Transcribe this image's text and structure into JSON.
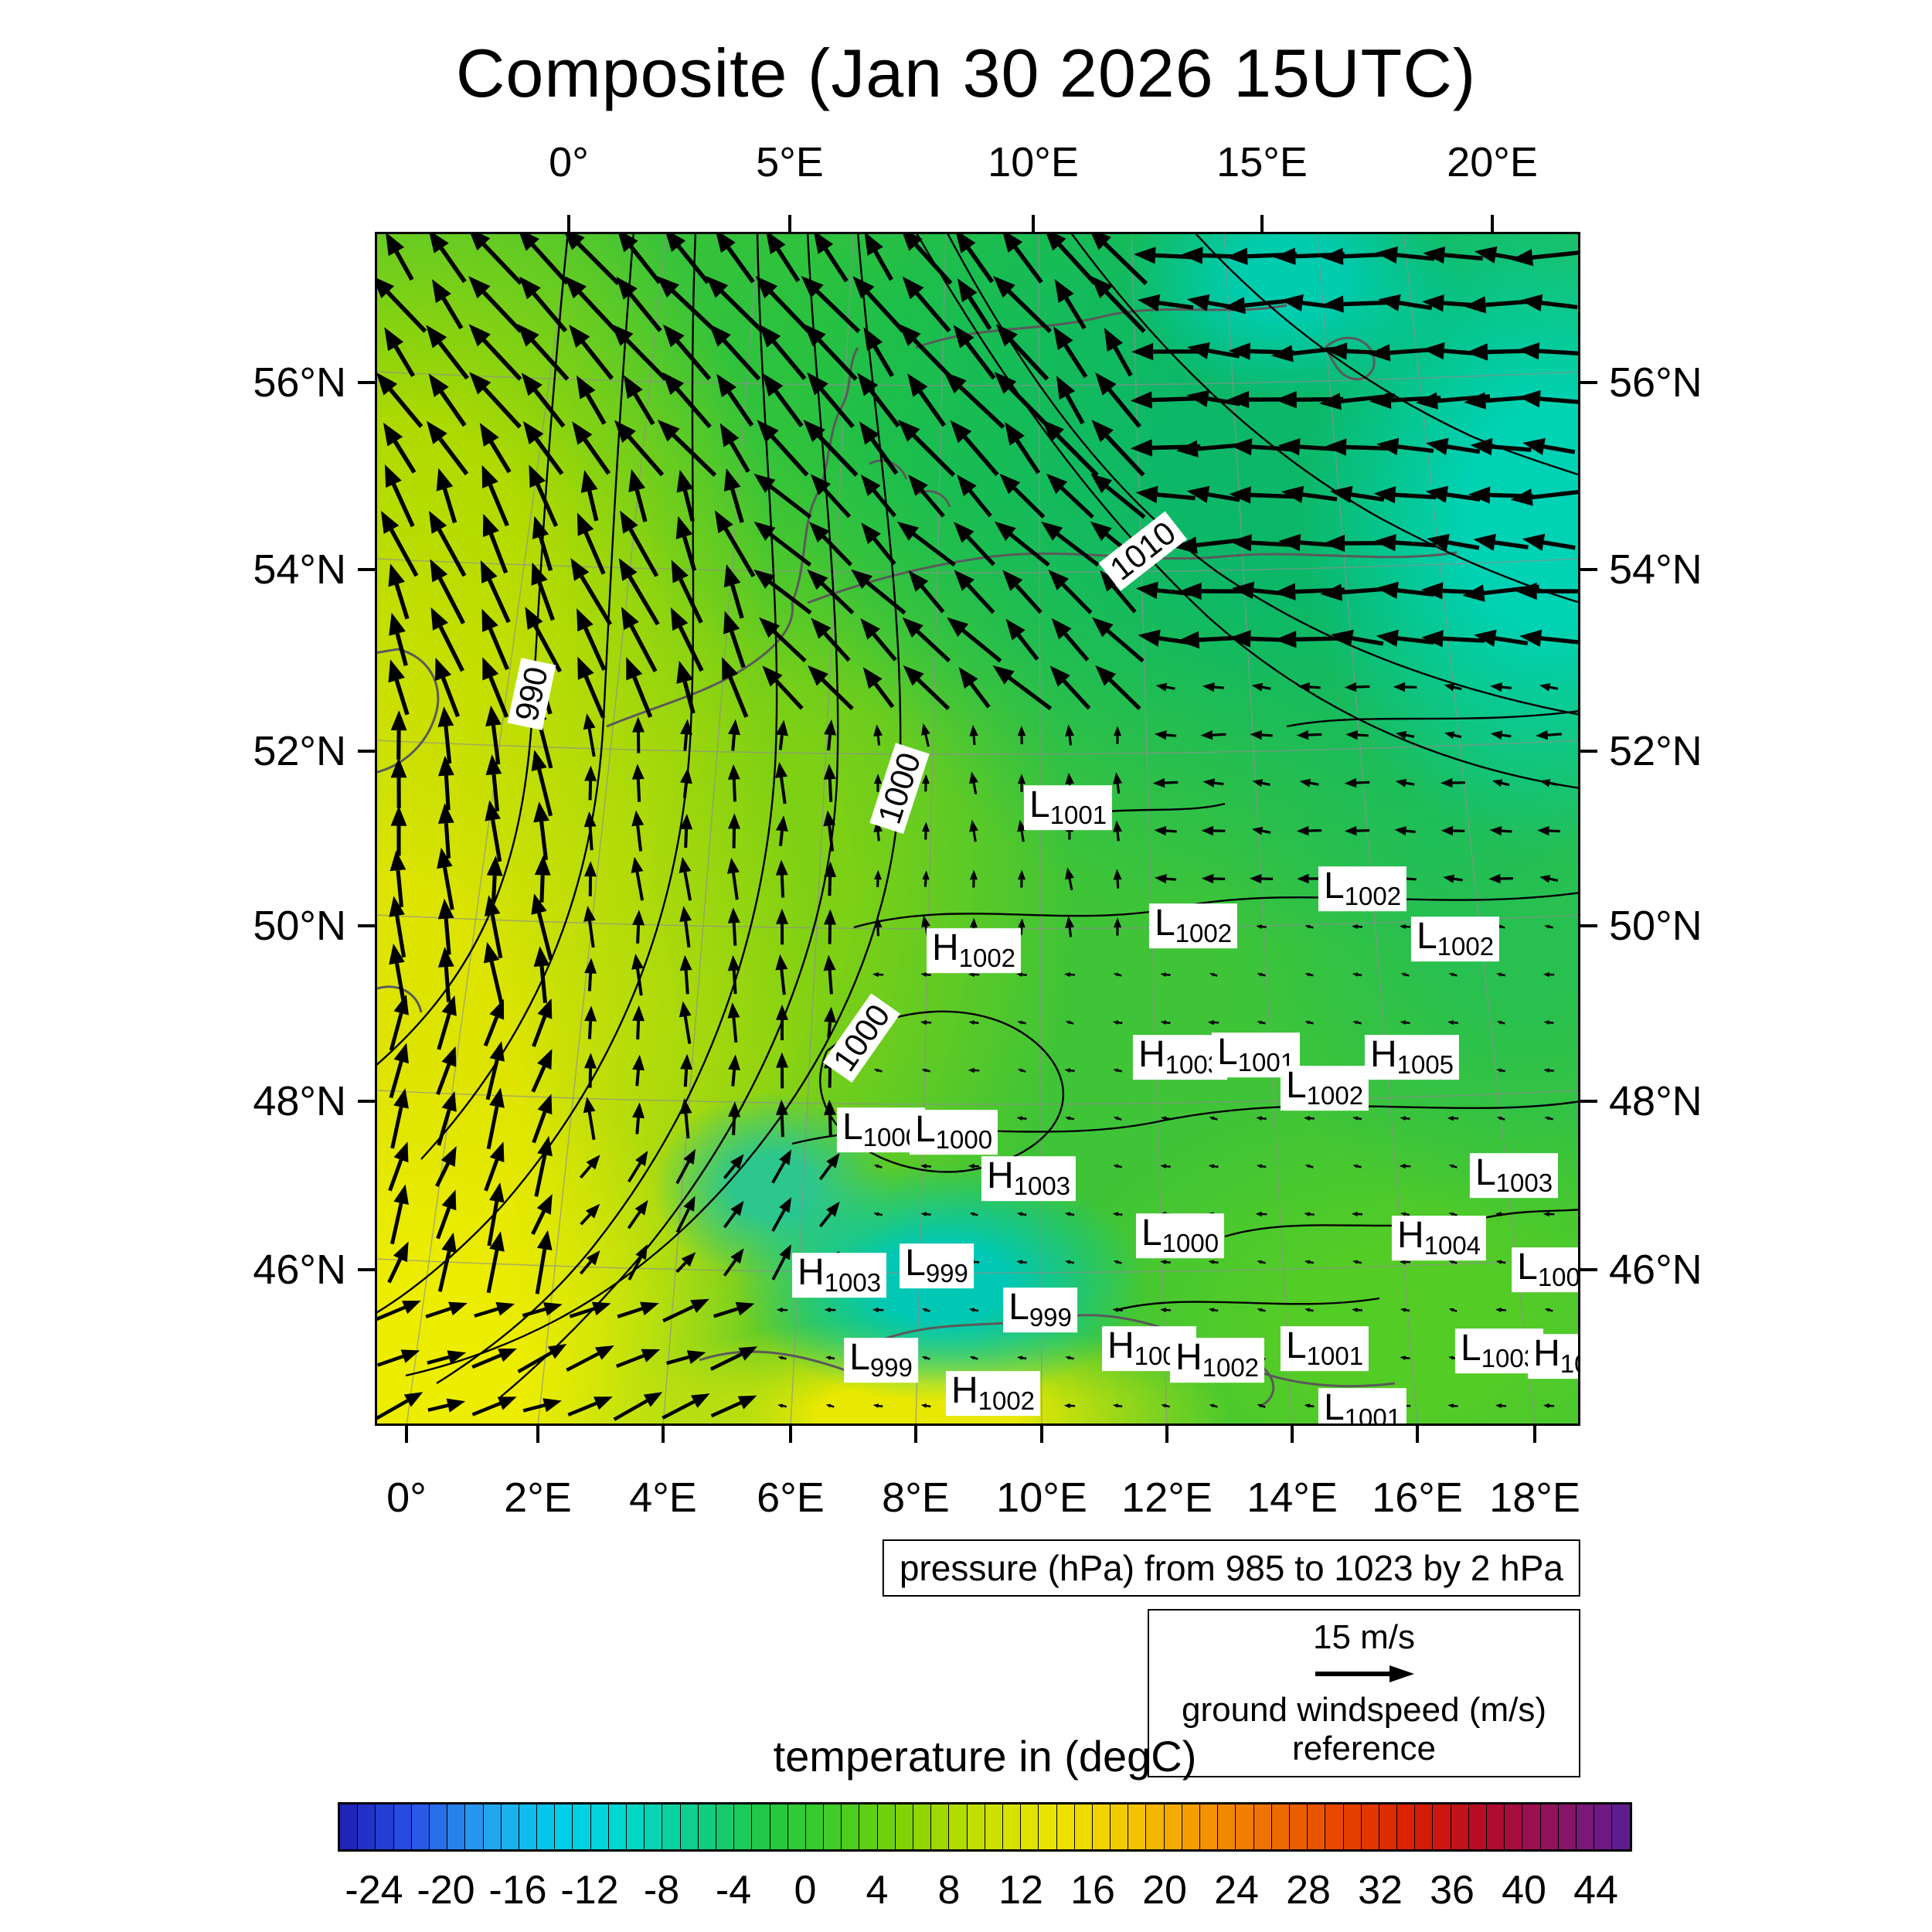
{
  "title": "Composite (Jan 30 2026 15UTC)",
  "chart_data": {
    "type": "heatmap",
    "title": "Composite (Jan 30 2026 15UTC)",
    "description": "Surface composite weather map over central Europe: temperature shading, sea-level pressure contours, surface wind vectors",
    "pressure_note": "pressure (hPa) from 985 to 1023 by 2 hPa",
    "wind_reference": {
      "value": "15 m/s",
      "label": "ground windspeed (m/s) reference"
    },
    "colorbar": {
      "title": "temperature in (degC)",
      "units": "degC",
      "min": -26,
      "max": 46,
      "tick_labels": [
        -24,
        -20,
        -16,
        -12,
        -8,
        -4,
        0,
        4,
        8,
        12,
        16,
        20,
        24,
        28,
        32,
        36,
        40,
        44
      ],
      "stops": [
        [
          -26,
          "#1e1eb4"
        ],
        [
          -22,
          "#2850e6"
        ],
        [
          -18,
          "#28a0f0"
        ],
        [
          -14,
          "#00ccee"
        ],
        [
          -10,
          "#00d8cc"
        ],
        [
          -6,
          "#10cc88"
        ],
        [
          -2,
          "#22c840"
        ],
        [
          2,
          "#44cc22"
        ],
        [
          6,
          "#88d400"
        ],
        [
          10,
          "#c8e000"
        ],
        [
          14,
          "#ece400"
        ],
        [
          18,
          "#f4c800"
        ],
        [
          22,
          "#f49800"
        ],
        [
          26,
          "#ee6e00"
        ],
        [
          30,
          "#e64400"
        ],
        [
          34,
          "#d81e00"
        ],
        [
          38,
          "#b40a28"
        ],
        [
          42,
          "#8c1464"
        ],
        [
          46,
          "#5a1e96"
        ]
      ]
    },
    "axes": {
      "top": [
        {
          "label": "0°",
          "f": 0.161
        },
        {
          "label": "5°E",
          "f": 0.344
        },
        {
          "label": "10°E",
          "f": 0.546
        },
        {
          "label": "15°E",
          "f": 0.736
        },
        {
          "label": "20°E",
          "f": 0.927
        }
      ],
      "bottom": [
        {
          "label": "0°",
          "f": 0.026
        },
        {
          "label": "2°E",
          "f": 0.135
        },
        {
          "label": "4°E",
          "f": 0.239
        },
        {
          "label": "6°E",
          "f": 0.345
        },
        {
          "label": "8°E",
          "f": 0.449
        },
        {
          "label": "10°E",
          "f": 0.553
        },
        {
          "label": "12°E",
          "f": 0.657
        },
        {
          "label": "14°E",
          "f": 0.761
        },
        {
          "label": "16°E",
          "f": 0.865
        },
        {
          "label": "18°E",
          "f": 0.962
        }
      ],
      "left": [
        {
          "label": "56°N",
          "f": 0.126
        },
        {
          "label": "54°N",
          "f": 0.283
        },
        {
          "label": "52°N",
          "f": 0.435
        },
        {
          "label": "50°N",
          "f": 0.581
        },
        {
          "label": "48°N",
          "f": 0.728
        },
        {
          "label": "46°N",
          "f": 0.869
        }
      ],
      "right": [
        {
          "label": "56°N",
          "f": 0.126
        },
        {
          "label": "54°N",
          "f": 0.283
        },
        {
          "label": "52°N",
          "f": 0.435
        },
        {
          "label": "50°N",
          "f": 0.581
        },
        {
          "label": "48°N",
          "f": 0.728
        },
        {
          "label": "46°N",
          "f": 0.869
        }
      ]
    },
    "isobar_labels": [
      {
        "text": "990",
        "x": 0.13,
        "y": 0.387,
        "rot": -78
      },
      {
        "text": "1010",
        "x": 0.637,
        "y": 0.267,
        "rot": -38
      },
      {
        "text": "1000",
        "x": 0.435,
        "y": 0.466,
        "rot": -72
      },
      {
        "text": "1000",
        "x": 0.404,
        "y": 0.675,
        "rot": -55
      }
    ],
    "pressure_centers": [
      {
        "t": "L",
        "v": "1001",
        "x": 0.575,
        "y": 0.482
      },
      {
        "t": "L",
        "v": "1002",
        "x": 0.819,
        "y": 0.55
      },
      {
        "t": "L",
        "v": "1002",
        "x": 0.679,
        "y": 0.581
      },
      {
        "t": "L",
        "v": "1002",
        "x": 0.896,
        "y": 0.592
      },
      {
        "t": "H",
        "v": "1002",
        "x": 0.497,
        "y": 0.602
      },
      {
        "t": "H",
        "v": "1003",
        "x": 0.668,
        "y": 0.691
      },
      {
        "t": "L",
        "v": "1001",
        "x": 0.731,
        "y": 0.689
      },
      {
        "t": "H",
        "v": "1005",
        "x": 0.86,
        "y": 0.691
      },
      {
        "t": "L",
        "v": "1002",
        "x": 0.788,
        "y": 0.717
      },
      {
        "t": "L",
        "v": "1000",
        "x": 0.42,
        "y": 0.752
      },
      {
        "t": "L",
        "v": "1000",
        "x": 0.48,
        "y": 0.754
      },
      {
        "t": "H",
        "v": "1003",
        "x": 0.542,
        "y": 0.793
      },
      {
        "t": "L",
        "v": "1003",
        "x": 0.945,
        "y": 0.79
      },
      {
        "t": "L",
        "v": "1000",
        "x": 0.668,
        "y": 0.841
      },
      {
        "t": "H",
        "v": "1004",
        "x": 0.883,
        "y": 0.843
      },
      {
        "t": "H",
        "v": "1003",
        "x": 0.385,
        "y": 0.874
      },
      {
        "t": "L",
        "v": "999",
        "x": 0.466,
        "y": 0.866
      },
      {
        "t": "L",
        "v": "100",
        "x": 0.974,
        "y": 0.869
      },
      {
        "t": "L",
        "v": "999",
        "x": 0.552,
        "y": 0.903
      },
      {
        "t": "L",
        "v": "999",
        "x": 0.42,
        "y": 0.945
      },
      {
        "t": "H",
        "v": "1002",
        "x": 0.642,
        "y": 0.935
      },
      {
        "t": "H",
        "v": "1002",
        "x": 0.699,
        "y": 0.945
      },
      {
        "t": "L",
        "v": "1001",
        "x": 0.788,
        "y": 0.935
      },
      {
        "t": "L",
        "v": "1003",
        "x": 0.933,
        "y": 0.937
      },
      {
        "t": "H",
        "v": "100",
        "x": 0.99,
        "y": 0.942
      },
      {
        "t": "H",
        "v": "1002",
        "x": 0.513,
        "y": 0.973
      },
      {
        "t": "L",
        "v": "1001",
        "x": 0.819,
        "y": 0.987
      }
    ],
    "wind_field": {
      "spacing": 62,
      "max_len": 88,
      "regions": [
        {
          "x": [
            0,
            0.62
          ],
          "y": [
            0,
            0.2
          ],
          "angle": 128,
          "len": 1.0
        },
        {
          "x": [
            0.62,
            1.01
          ],
          "y": [
            0,
            0.38
          ],
          "angle": 178,
          "len": 0.95
        },
        {
          "x": [
            0,
            0.3
          ],
          "y": [
            0.2,
            0.4
          ],
          "angle": 112,
          "len": 0.95
        },
        {
          "x": [
            0.3,
            0.62
          ],
          "y": [
            0.2,
            0.42
          ],
          "angle": 135,
          "len": 0.9
        },
        {
          "x": [
            0,
            0.16
          ],
          "y": [
            0.4,
            0.66
          ],
          "angle": 96,
          "len": 0.85
        },
        {
          "x": [
            0,
            0.16
          ],
          "y": [
            0.66,
            0.88
          ],
          "angle": 72,
          "len": 0.8
        },
        {
          "x": [
            0,
            0.3
          ],
          "y": [
            0.88,
            1.01
          ],
          "angle": 22,
          "len": 0.7
        },
        {
          "x": [
            0.16,
            0.38
          ],
          "y": [
            0.4,
            0.75
          ],
          "angle": 92,
          "len": 0.55
        },
        {
          "x": [
            0.16,
            0.38
          ],
          "y": [
            0.75,
            0.88
          ],
          "angle": 55,
          "len": 0.5
        },
        {
          "x": [
            0.38,
            0.62
          ],
          "y": [
            0.42,
            0.62
          ],
          "angle": 95,
          "len": 0.3
        },
        {
          "x": [
            0.62,
            1.01
          ],
          "y": [
            0.38,
            0.55
          ],
          "angle": 175,
          "len": 0.32
        }
      ],
      "default": {
        "angle": 170,
        "len": 0.14
      }
    },
    "temperature_field": {
      "base": "#3fc437",
      "blobs": [
        {
          "x": 0.47,
          "y": 0.88,
          "rx": 0.17,
          "ry": 0.1,
          "c": "#00c8b4"
        },
        {
          "x": 0.33,
          "y": 0.8,
          "rx": 0.1,
          "ry": 0.08,
          "c": "#2cc68e"
        },
        {
          "x": 0.45,
          "y": 0.99,
          "rx": 0.26,
          "ry": 0.08,
          "c": "#e8e800"
        },
        {
          "x": 0.02,
          "y": 0.97,
          "rx": 0.3,
          "ry": 0.28,
          "c": "#eded00"
        },
        {
          "x": 0.0,
          "y": 0.75,
          "rx": 0.38,
          "ry": 0.65,
          "c": "#dde400"
        },
        {
          "x": 0.03,
          "y": 0.28,
          "rx": 0.3,
          "ry": 0.38,
          "c": "#a6d800"
        },
        {
          "x": 0.97,
          "y": 0.24,
          "rx": 0.2,
          "ry": 0.28,
          "c": "#00d2b4"
        },
        {
          "x": 0.76,
          "y": 0.04,
          "rx": 0.14,
          "ry": 0.1,
          "c": "#00ccae"
        },
        {
          "x": 0.8,
          "y": 0.18,
          "rx": 0.45,
          "ry": 0.42,
          "c": "#0cb868"
        },
        {
          "x": 0.55,
          "y": 0.12,
          "rx": 0.4,
          "ry": 0.3,
          "c": "#22c042"
        },
        {
          "x": 0.95,
          "y": 0.55,
          "rx": 0.25,
          "ry": 0.28,
          "c": "#28c050"
        },
        {
          "x": 0.85,
          "y": 0.92,
          "rx": 0.3,
          "ry": 0.2,
          "c": "#54cc26"
        },
        {
          "x": 0.3,
          "y": 0.55,
          "rx": 0.28,
          "ry": 0.45,
          "c": "#7ed014"
        }
      ]
    }
  }
}
